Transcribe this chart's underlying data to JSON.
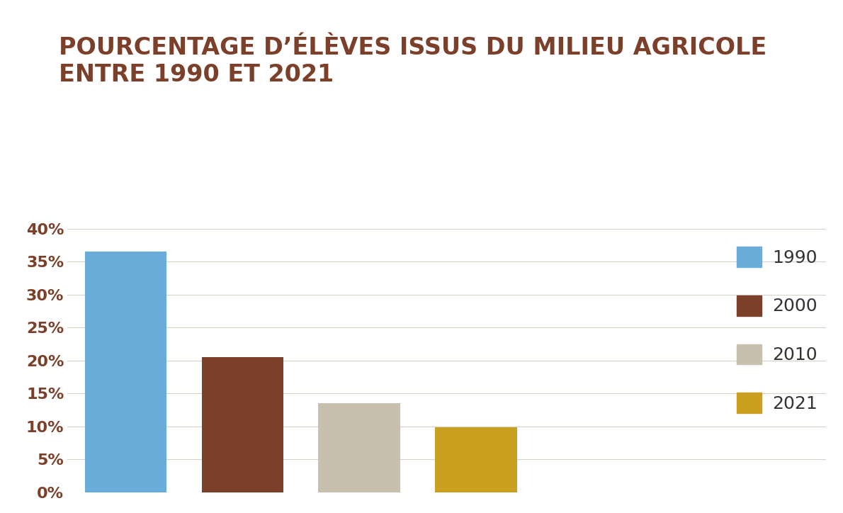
{
  "title_line1": "POURCENTAGE D’ÉLÈVES ISSUS DU MILIEU AGRICOLE",
  "title_line2": "ENTRE 1990 ET 2021",
  "categories": [
    "1990",
    "2000",
    "2010",
    "2021"
  ],
  "values": [
    36.5,
    20.5,
    13.5,
    9.9
  ],
  "bar_colors": [
    "#6aaddb",
    "#7b3f2a",
    "#c8bfaf",
    "#c9a020"
  ],
  "background_color": "#ffffff",
  "title_color": "#7b3f2a",
  "tick_label_color": "#7b3f2a",
  "legend_text_color": "#333333",
  "grid_color": "#d8d0c8",
  "ylim": [
    0,
    42
  ],
  "yticks": [
    0,
    5,
    10,
    15,
    20,
    25,
    30,
    35,
    40
  ],
  "legend_labels": [
    "1990",
    "2000",
    "2010",
    "2021"
  ],
  "title_fontsize": 24,
  "tick_fontsize": 16,
  "legend_fontsize": 18
}
